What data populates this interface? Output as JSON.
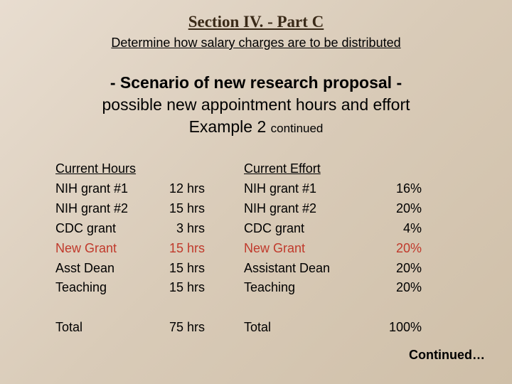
{
  "colors": {
    "bg_top": "#e8ddd0",
    "bg_bottom": "#cfbfa8",
    "title_text": "#3a2a18",
    "body_text": "#000000",
    "highlight_red": "#c0392b"
  },
  "typography": {
    "title_font": "Times New Roman",
    "title_size_pt": 17,
    "body_font": "Arial",
    "body_size_pt": 14,
    "scenario_size_pt": 17
  },
  "title": "Section IV. - Part C",
  "subtitle": "Determine how salary charges are to be distributed",
  "scenario_line1": "- Scenario of new research proposal -",
  "scenario_line2": "possible new appointment hours and effort",
  "scenario_line3_main": "Example 2 ",
  "scenario_line3_sub": "continued",
  "hours": {
    "header": "Current Hours",
    "rows": [
      {
        "label": "NIH grant #1",
        "value": "12 hrs",
        "highlight": false
      },
      {
        "label": "NIH grant #2",
        "value": "15 hrs",
        "highlight": false
      },
      {
        "label": "CDC grant",
        "value": "3 hrs",
        "highlight": false
      },
      {
        "label": "New Grant",
        "value": "15 hrs",
        "highlight": true
      },
      {
        "label": "Asst Dean",
        "value": "15 hrs",
        "highlight": false
      },
      {
        "label": "Teaching",
        "value": "15 hrs",
        "highlight": false
      }
    ],
    "total_label": "Total",
    "total_value": "75 hrs"
  },
  "effort": {
    "header": "Current Effort",
    "rows": [
      {
        "label": "NIH grant #1",
        "value": "16%",
        "highlight": false
      },
      {
        "label": "NIH grant #2",
        "value": "20%",
        "highlight": false
      },
      {
        "label": "CDC grant",
        "value": "4%",
        "highlight": false
      },
      {
        "label": "New Grant",
        "value": "20%",
        "highlight": true
      },
      {
        "label": "Assistant Dean",
        "value": "20%",
        "highlight": false
      },
      {
        "label": "Teaching",
        "value": "20%",
        "highlight": false
      }
    ],
    "total_label": "Total",
    "total_value": "100%"
  },
  "continued": "Continued…"
}
